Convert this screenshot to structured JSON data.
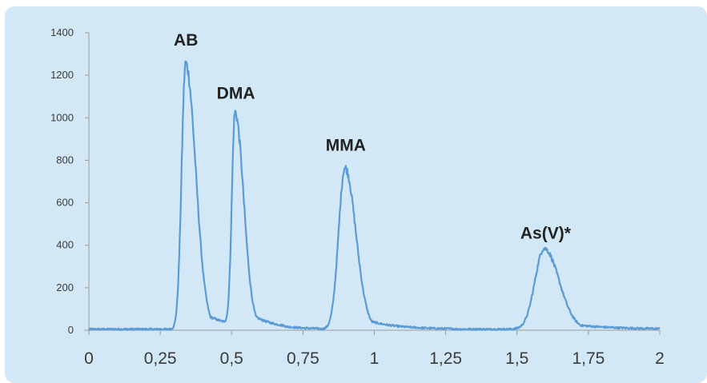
{
  "chart_data": {
    "type": "line",
    "title": "",
    "xlabel": "",
    "ylabel": "",
    "xlim": [
      0,
      2
    ],
    "ylim": [
      0,
      1400
    ],
    "x_ticks": [
      0,
      0.25,
      0.5,
      0.75,
      1,
      1.25,
      1.5,
      1.75,
      2
    ],
    "x_tick_labels": [
      "0",
      "0,25",
      "0,5",
      "0,75",
      "1",
      "1,25",
      "1,5",
      "1,75",
      "2"
    ],
    "y_ticks": [
      0,
      200,
      400,
      600,
      800,
      1000,
      1200,
      1400
    ],
    "y_tick_labels": [
      "0",
      "200",
      "400",
      "600",
      "800",
      "1000",
      "1200",
      "1400"
    ],
    "grid": false,
    "legend": "none",
    "line_color": "#5b9bd5",
    "background_color": "#d3e8f6",
    "series": [
      {
        "peaks": [
          {
            "label": "AB",
            "x": 0.339,
            "height": 1250,
            "left_width": 0.014,
            "right_width": 0.035
          },
          {
            "label": "DMA",
            "x": 0.512,
            "height": 1000,
            "left_width": 0.011,
            "right_width": 0.03
          },
          {
            "label": "MMA",
            "x": 0.897,
            "height": 760,
            "left_width": 0.022,
            "right_width": 0.038
          },
          {
            "label": "As(V)*",
            "x": 1.595,
            "height": 380,
            "left_width": 0.032,
            "right_width": 0.052
          }
        ],
        "baseline": 5
      }
    ],
    "annotations": [
      {
        "text": "AB",
        "x": 0.34,
        "y": 1340
      },
      {
        "text": "DMA",
        "x": 0.515,
        "y": 1090
      },
      {
        "text": "MMA",
        "x": 0.9,
        "y": 845
      },
      {
        "text": "As(V)*",
        "x": 1.6,
        "y": 430
      }
    ]
  }
}
